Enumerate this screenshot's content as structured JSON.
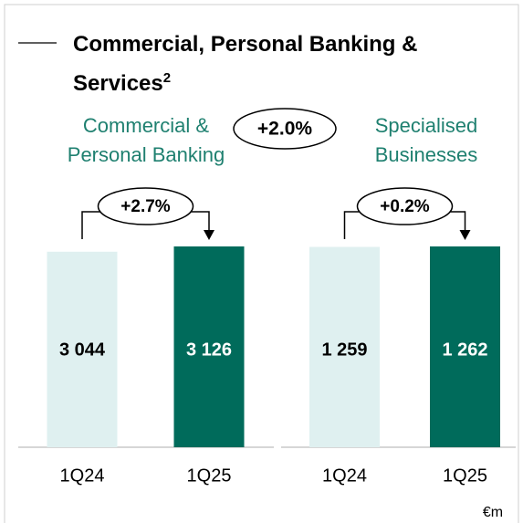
{
  "header": {
    "title": "Commercial, Personal Banking & Services",
    "superscript": "2",
    "change": "+2.0%",
    "unit": "€m"
  },
  "chart_data": [
    {
      "type": "bar",
      "title": "Commercial & Personal Banking",
      "change": "+2.7%",
      "categories": [
        "1Q24",
        "1Q25"
      ],
      "values": [
        3044,
        3126
      ],
      "value_labels": [
        "3 044",
        "3 126"
      ],
      "colors": [
        "#dff0f0",
        "#006b5b"
      ],
      "ylim": [
        0,
        3126
      ]
    },
    {
      "type": "bar",
      "title": "Specialised Businesses",
      "change": "+0.2%",
      "categories": [
        "1Q24",
        "1Q25"
      ],
      "values": [
        1259,
        1262
      ],
      "value_labels": [
        "1 259",
        "1 262"
      ],
      "colors": [
        "#dff0f0",
        "#006b5b"
      ],
      "ylim": [
        0,
        1262
      ]
    }
  ]
}
